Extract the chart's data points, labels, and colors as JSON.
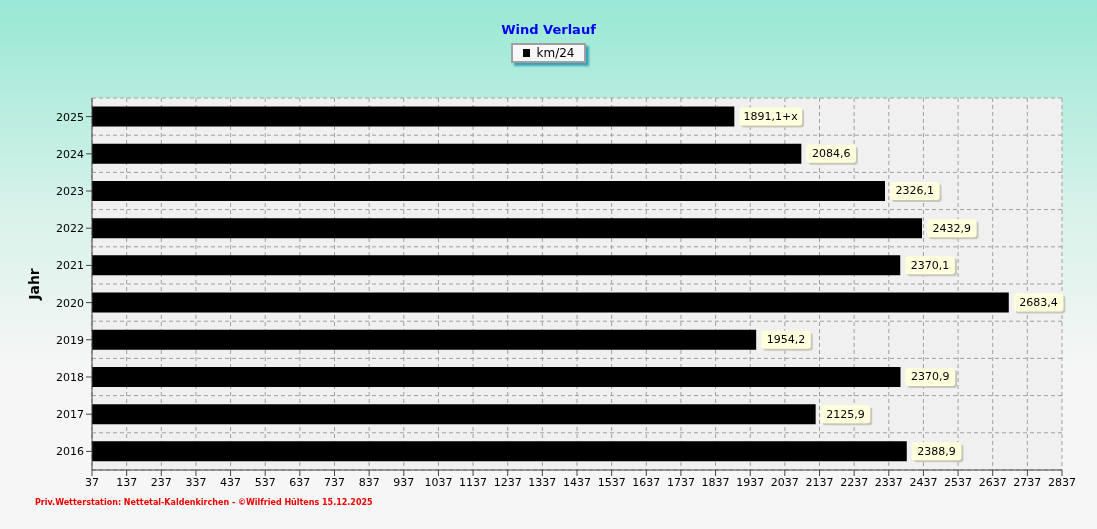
{
  "chart_data": {
    "type": "bar",
    "orientation": "horizontal",
    "title": "Wind Verlauf",
    "ylabel": "Jahr",
    "categories": [
      "2025",
      "2024",
      "2023",
      "2022",
      "2021",
      "2020",
      "2019",
      "2018",
      "2017",
      "2016"
    ],
    "series": [
      {
        "name": "km/24",
        "color": "#000000",
        "values": [
          1891.1,
          2084.6,
          2326.1,
          2432.9,
          2370.1,
          2683.4,
          1954.2,
          2370.9,
          2125.9,
          2388.9
        ],
        "value_labels": [
          "1891,1+x",
          "2084,6",
          "2326,1",
          "2432,9",
          "2370,1",
          "2683,4",
          "1954,2",
          "2370,9",
          "2125,9",
          "2388,9"
        ]
      }
    ],
    "xlim": [
      37,
      2837
    ],
    "xticks": [
      37,
      137,
      237,
      337,
      437,
      537,
      637,
      737,
      837,
      937,
      1037,
      1137,
      1237,
      1337,
      1437,
      1537,
      1637,
      1737,
      1837,
      1937,
      2037,
      2137,
      2237,
      2337,
      2437,
      2537,
      2637,
      2737,
      2837
    ],
    "grid": true,
    "legend": "top",
    "annotations": [
      "Priv.Wetterstation: Nettetal-Kaldenkirchen - ©Wilfried Hültens 15.12.2025"
    ]
  }
}
